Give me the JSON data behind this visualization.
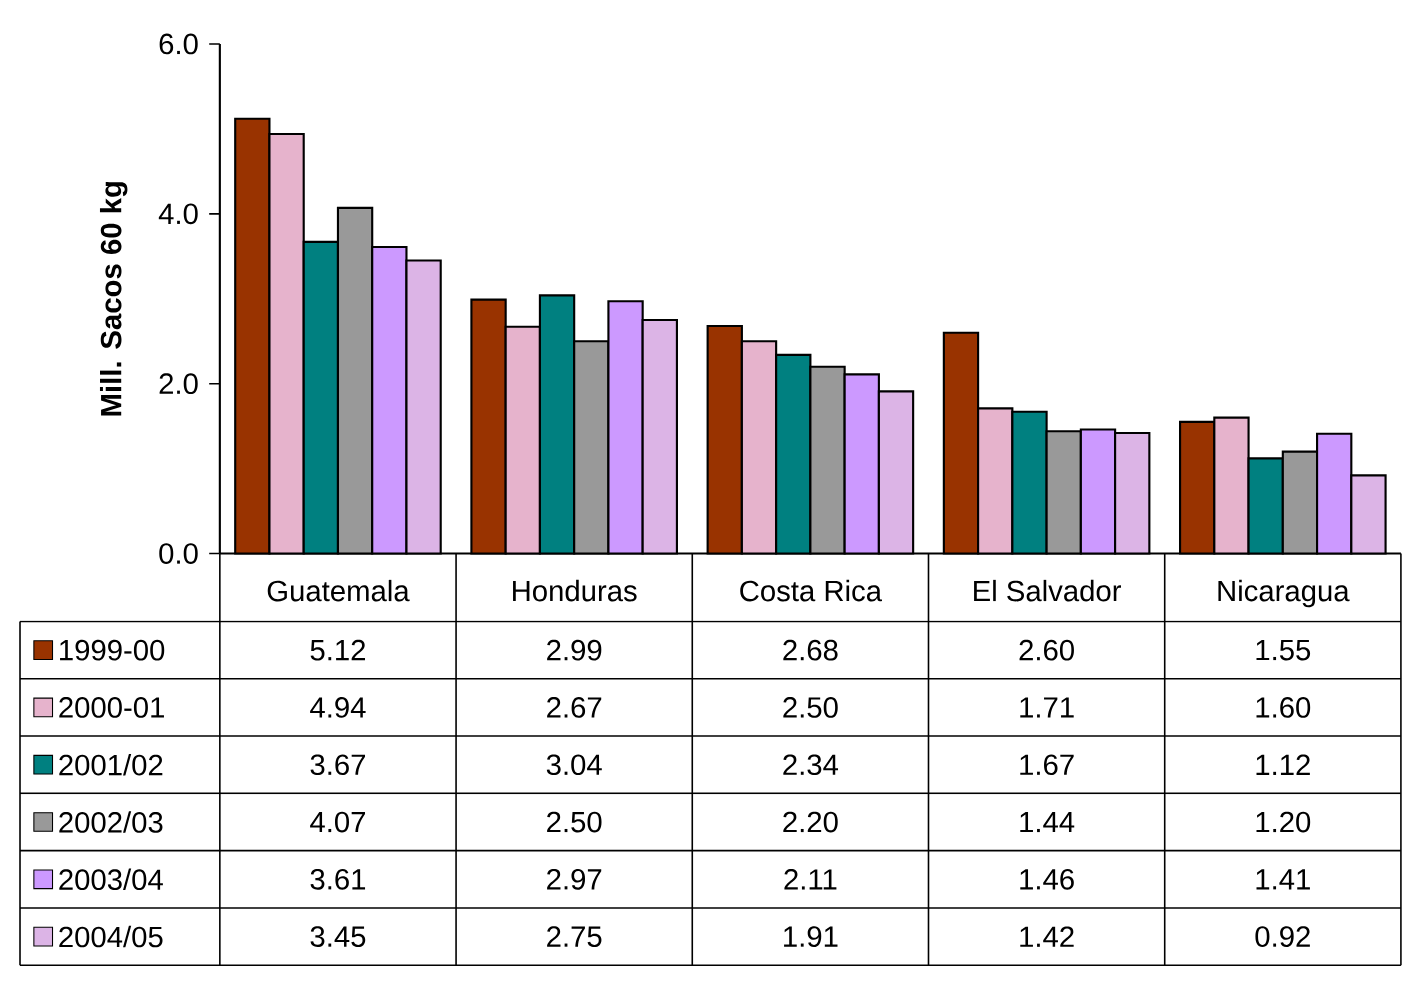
{
  "chart_data": {
    "type": "bar",
    "ylabel": "Mill. Sacos 60 kg",
    "categories": [
      "Guatemala",
      "Honduras",
      "Costa Rica",
      "El Salvador",
      "Nicaragua"
    ],
    "series": [
      {
        "name": "1999-00",
        "color": "#993300",
        "values": [
          5.12,
          2.99,
          2.68,
          2.6,
          1.55
        ],
        "value_labels": [
          "5.12",
          "2.99",
          "2.68",
          "2.60",
          "1.55"
        ]
      },
      {
        "name": "2000-01",
        "color": "#e6b3cc",
        "values": [
          4.94,
          2.67,
          2.5,
          1.71,
          1.6
        ],
        "value_labels": [
          "4.94",
          "2.67",
          "2.50",
          "1.71",
          "1.60"
        ]
      },
      {
        "name": "2001/02",
        "color": "#008080",
        "values": [
          3.67,
          3.04,
          2.34,
          1.67,
          1.12
        ],
        "value_labels": [
          "3.67",
          "3.04",
          "2.34",
          "1.67",
          "1.12"
        ]
      },
      {
        "name": "2002/03",
        "color": "#999999",
        "values": [
          4.07,
          2.5,
          2.2,
          1.44,
          1.2
        ],
        "value_labels": [
          "4.07",
          "2.50",
          "2.20",
          "1.44",
          "1.20"
        ]
      },
      {
        "name": "2003/04",
        "color": "#cc99ff",
        "values": [
          3.61,
          2.97,
          2.11,
          1.46,
          1.41
        ],
        "value_labels": [
          "3.61",
          "2.97",
          "2.11",
          "1.46",
          "1.41"
        ]
      },
      {
        "name": "2004/05",
        "color": "#dcb4e6",
        "values": [
          3.45,
          2.75,
          1.91,
          1.42,
          0.92
        ],
        "value_labels": [
          "3.45",
          "2.75",
          "1.91",
          "1.42",
          "0.92"
        ]
      }
    ],
    "ylim": [
      0,
      6
    ],
    "yticks": [
      {
        "value": 0,
        "label": "0.0"
      },
      {
        "value": 2,
        "label": "2.0"
      },
      {
        "value": 4,
        "label": "4.0"
      },
      {
        "value": 6,
        "label": "6.0"
      }
    ],
    "legend": "bottom"
  }
}
